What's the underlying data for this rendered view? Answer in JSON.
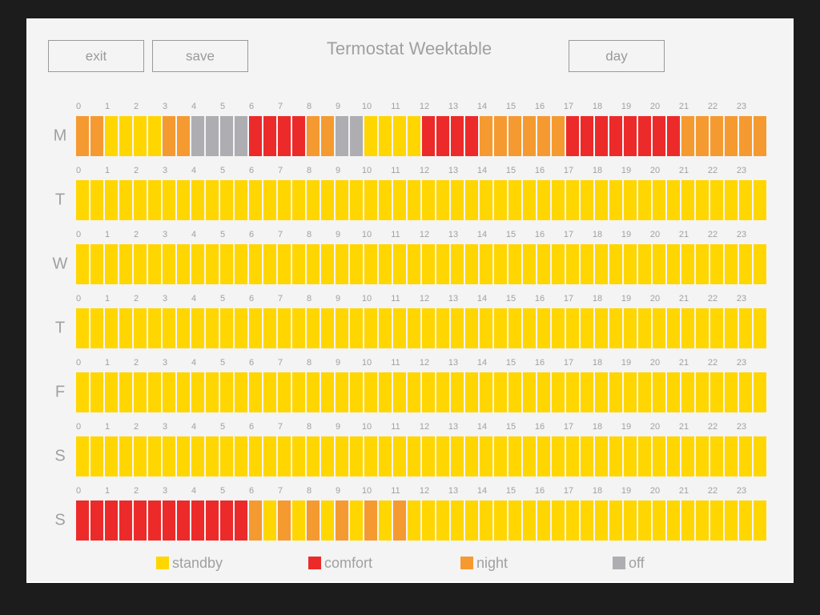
{
  "title": "Termostat Weektable",
  "buttons": {
    "exit": "exit",
    "save": "save",
    "day": "day"
  },
  "hours": [
    0,
    1,
    2,
    3,
    4,
    5,
    6,
    7,
    8,
    9,
    10,
    11,
    12,
    13,
    14,
    15,
    16,
    17,
    18,
    19,
    20,
    21,
    22,
    23
  ],
  "legend": [
    {
      "label": "standby",
      "color": "#ffd600"
    },
    {
      "label": "comfort",
      "color": "#ec2a2a"
    },
    {
      "label": "night",
      "color": "#f59a30"
    },
    {
      "label": "off",
      "color": "#aeaeb2"
    }
  ],
  "days": [
    {
      "label": "M",
      "slots": [
        2,
        2,
        0,
        0,
        0,
        0,
        2,
        2,
        3,
        3,
        3,
        3,
        1,
        1,
        1,
        1,
        2,
        2,
        3,
        3,
        0,
        0,
        0,
        0,
        1,
        1,
        1,
        1,
        2,
        2,
        2,
        2,
        2,
        2,
        1,
        1,
        1,
        1,
        1,
        1,
        1,
        1,
        2,
        2,
        2,
        2,
        2,
        2
      ]
    },
    {
      "label": "T",
      "slots": [
        0,
        0,
        0,
        0,
        0,
        0,
        0,
        0,
        0,
        0,
        0,
        0,
        0,
        0,
        0,
        0,
        0,
        0,
        0,
        0,
        0,
        0,
        0,
        0,
        0,
        0,
        0,
        0,
        0,
        0,
        0,
        0,
        0,
        0,
        0,
        0,
        0,
        0,
        0,
        0,
        0,
        0,
        0,
        0,
        0,
        0,
        0,
        0
      ]
    },
    {
      "label": "W",
      "slots": [
        0,
        0,
        0,
        0,
        0,
        0,
        0,
        0,
        0,
        0,
        0,
        0,
        0,
        0,
        0,
        0,
        0,
        0,
        0,
        0,
        0,
        0,
        0,
        0,
        0,
        0,
        0,
        0,
        0,
        0,
        0,
        0,
        0,
        0,
        0,
        0,
        0,
        0,
        0,
        0,
        0,
        0,
        0,
        0,
        0,
        0,
        0,
        0
      ]
    },
    {
      "label": "T",
      "slots": [
        0,
        0,
        0,
        0,
        0,
        0,
        0,
        0,
        0,
        0,
        0,
        0,
        0,
        0,
        0,
        0,
        0,
        0,
        0,
        0,
        0,
        0,
        0,
        0,
        0,
        0,
        0,
        0,
        0,
        0,
        0,
        0,
        0,
        0,
        0,
        0,
        0,
        0,
        0,
        0,
        0,
        0,
        0,
        0,
        0,
        0,
        0,
        0
      ]
    },
    {
      "label": "F",
      "slots": [
        0,
        0,
        0,
        0,
        0,
        0,
        0,
        0,
        0,
        0,
        0,
        0,
        0,
        0,
        0,
        0,
        0,
        0,
        0,
        0,
        0,
        0,
        0,
        0,
        0,
        0,
        0,
        0,
        0,
        0,
        0,
        0,
        0,
        0,
        0,
        0,
        0,
        0,
        0,
        0,
        0,
        0,
        0,
        0,
        0,
        0,
        0,
        0
      ]
    },
    {
      "label": "S",
      "slots": [
        0,
        0,
        0,
        0,
        0,
        0,
        0,
        0,
        0,
        0,
        0,
        0,
        0,
        0,
        0,
        0,
        0,
        0,
        0,
        0,
        0,
        0,
        0,
        0,
        0,
        0,
        0,
        0,
        0,
        0,
        0,
        0,
        0,
        0,
        0,
        0,
        0,
        0,
        0,
        0,
        0,
        0,
        0,
        0,
        0,
        0,
        0,
        0
      ]
    },
    {
      "label": "S",
      "slots": [
        1,
        1,
        1,
        1,
        1,
        1,
        1,
        1,
        1,
        1,
        1,
        1,
        2,
        0,
        2,
        0,
        2,
        0,
        2,
        0,
        2,
        0,
        2,
        0,
        0,
        0,
        0,
        0,
        0,
        0,
        0,
        0,
        0,
        0,
        0,
        0,
        0,
        0,
        0,
        0,
        0,
        0,
        0,
        0,
        0,
        0,
        0,
        0
      ]
    }
  ]
}
